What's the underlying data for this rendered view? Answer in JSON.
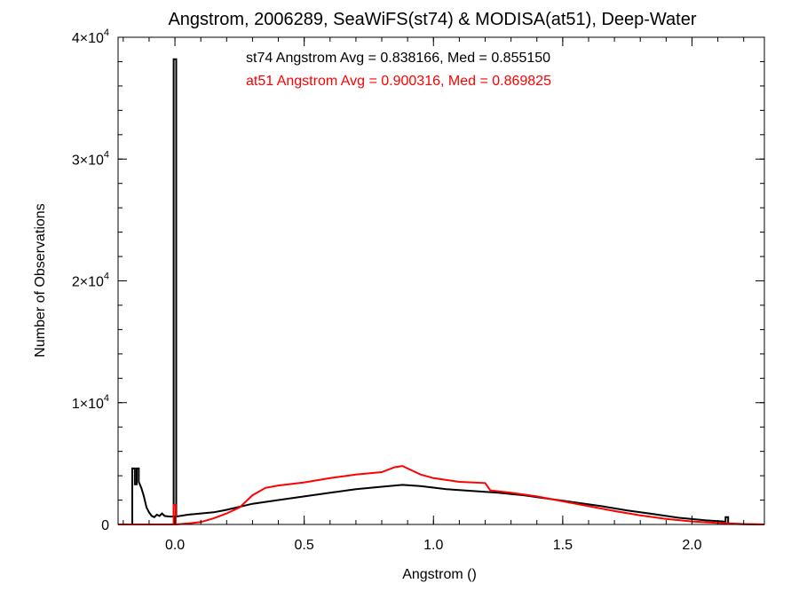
{
  "chart_data": {
    "type": "line",
    "title": "Angstrom, 2006289, SeaWiFS(st74) & MODISA(at51), Deep-Water",
    "xlabel": "Angstrom ()",
    "ylabel": "Number of Observations",
    "xlim": [
      -0.22,
      2.28
    ],
    "ylim": [
      0,
      40000
    ],
    "x_ticks": [
      {
        "value": 0.0,
        "label": "0.0"
      },
      {
        "value": 0.5,
        "label": "0.5"
      },
      {
        "value": 1.0,
        "label": "1.0"
      },
      {
        "value": 1.5,
        "label": "1.5"
      },
      {
        "value": 2.0,
        "label": "2.0"
      }
    ],
    "y_ticks": [
      {
        "value": 0,
        "base": "0",
        "exp": ""
      },
      {
        "value": 10000,
        "base": "1×10",
        "exp": "4"
      },
      {
        "value": 20000,
        "base": "2×10",
        "exp": "4"
      },
      {
        "value": 30000,
        "base": "3×10",
        "exp": "4"
      },
      {
        "value": 40000,
        "base": "4×10",
        "exp": "4"
      }
    ],
    "grid": false,
    "annotations": [
      {
        "text": "st74 Angstrom Avg = 0.838166, Med = 0.855150",
        "color": "#000000"
      },
      {
        "text": "at51 Angstrom Avg = 0.900316, Med = 0.869825",
        "color": "#ff0000"
      }
    ],
    "series": [
      {
        "color": "#000000",
        "points": [
          [
            -0.22,
            0
          ],
          [
            -0.165,
            0
          ],
          [
            -0.165,
            4600
          ],
          [
            -0.155,
            4600
          ],
          [
            -0.155,
            3300
          ],
          [
            -0.148,
            3300
          ],
          [
            -0.148,
            4600
          ],
          [
            -0.14,
            4600
          ],
          [
            -0.14,
            3500
          ],
          [
            -0.13,
            3000
          ],
          [
            -0.12,
            2300
          ],
          [
            -0.11,
            1400
          ],
          [
            -0.1,
            1000
          ],
          [
            -0.09,
            700
          ],
          [
            -0.08,
            600
          ],
          [
            -0.07,
            800
          ],
          [
            -0.06,
            700
          ],
          [
            -0.05,
            900
          ],
          [
            -0.04,
            700
          ],
          [
            -0.02,
            650
          ],
          [
            -0.005,
            650
          ],
          [
            -0.005,
            38200
          ],
          [
            0.005,
            38200
          ],
          [
            0.005,
            650
          ],
          [
            0.05,
            800
          ],
          [
            0.1,
            900
          ],
          [
            0.15,
            1000
          ],
          [
            0.2,
            1200
          ],
          [
            0.3,
            1700
          ],
          [
            0.4,
            2000
          ],
          [
            0.5,
            2300
          ],
          [
            0.6,
            2600
          ],
          [
            0.7,
            2900
          ],
          [
            0.8,
            3100
          ],
          [
            0.88,
            3250
          ],
          [
            0.95,
            3150
          ],
          [
            1.05,
            2900
          ],
          [
            1.15,
            2750
          ],
          [
            1.25,
            2600
          ],
          [
            1.35,
            2400
          ],
          [
            1.45,
            2100
          ],
          [
            1.55,
            1800
          ],
          [
            1.65,
            1500
          ],
          [
            1.75,
            1150
          ],
          [
            1.85,
            850
          ],
          [
            1.95,
            550
          ],
          [
            2.05,
            350
          ],
          [
            2.12,
            250
          ],
          [
            2.13,
            250
          ],
          [
            2.13,
            600
          ],
          [
            2.14,
            600
          ],
          [
            2.14,
            50
          ],
          [
            2.2,
            20
          ],
          [
            2.28,
            0
          ]
        ]
      },
      {
        "color": "#ff0000",
        "points": [
          [
            -0.22,
            0
          ],
          [
            -0.005,
            0
          ],
          [
            -0.005,
            1600
          ],
          [
            0.003,
            1600
          ],
          [
            0.003,
            0
          ],
          [
            0.06,
            100
          ],
          [
            0.1,
            200
          ],
          [
            0.15,
            500
          ],
          [
            0.2,
            900
          ],
          [
            0.25,
            1400
          ],
          [
            0.3,
            2400
          ],
          [
            0.35,
            3000
          ],
          [
            0.4,
            3200
          ],
          [
            0.5,
            3450
          ],
          [
            0.6,
            3800
          ],
          [
            0.7,
            4100
          ],
          [
            0.8,
            4300
          ],
          [
            0.85,
            4700
          ],
          [
            0.88,
            4800
          ],
          [
            0.9,
            4600
          ],
          [
            0.95,
            4100
          ],
          [
            1.0,
            3800
          ],
          [
            1.1,
            3500
          ],
          [
            1.2,
            3400
          ],
          [
            1.22,
            2800
          ],
          [
            1.3,
            2600
          ],
          [
            1.4,
            2300
          ],
          [
            1.5,
            1900
          ],
          [
            1.6,
            1500
          ],
          [
            1.7,
            1100
          ],
          [
            1.8,
            750
          ],
          [
            1.9,
            450
          ],
          [
            2.0,
            250
          ],
          [
            2.1,
            130
          ],
          [
            2.2,
            40
          ],
          [
            2.28,
            0
          ]
        ]
      }
    ]
  }
}
